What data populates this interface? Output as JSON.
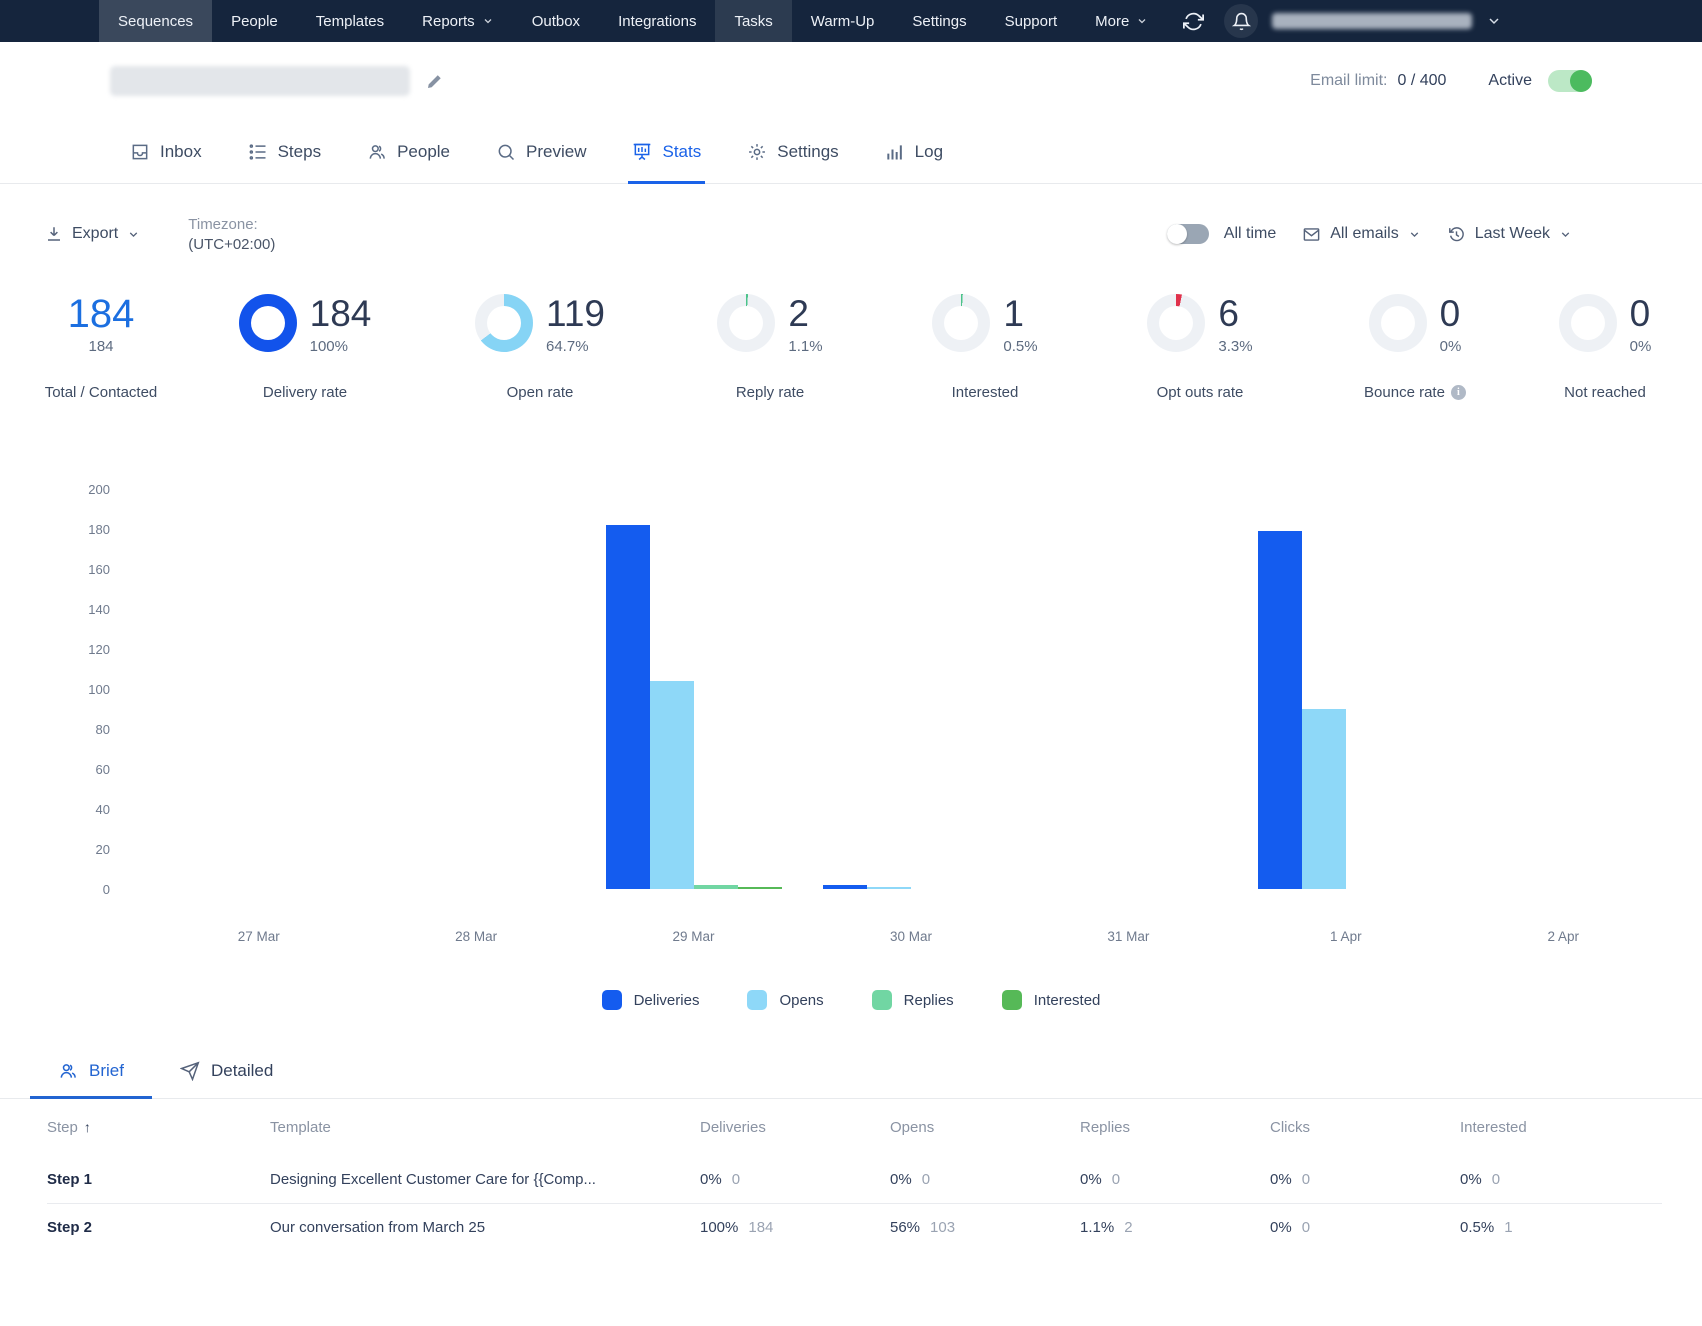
{
  "colors": {
    "accent": "#1A62E8",
    "nav_bg": "#15253D",
    "toggle_on": "#4CBB5F",
    "donut_track": "#EEF1F5"
  },
  "nav": {
    "items": [
      {
        "label": "Sequences"
      },
      {
        "label": "People"
      },
      {
        "label": "Templates"
      },
      {
        "label": "Reports"
      },
      {
        "label": "Outbox"
      },
      {
        "label": "Integrations"
      },
      {
        "label": "Tasks"
      },
      {
        "label": "Warm-Up"
      },
      {
        "label": "Settings"
      },
      {
        "label": "Support"
      },
      {
        "label": "More"
      }
    ]
  },
  "header": {
    "email_limit_label": "Email limit:",
    "email_limit_value": "0 / 400",
    "active_label": "Active",
    "active_on": true
  },
  "tabs": [
    {
      "label": "Inbox"
    },
    {
      "label": "Steps"
    },
    {
      "label": "People"
    },
    {
      "label": "Preview"
    },
    {
      "label": "Stats"
    },
    {
      "label": "Settings"
    },
    {
      "label": "Log"
    }
  ],
  "toolbar": {
    "export_label": "Export",
    "timezone_label": "Timezone:",
    "timezone_value": "(UTC+02:00)",
    "all_time_label": "All time",
    "all_time_on": false,
    "emails_filter_label": "All emails",
    "range_filter_label": "Last Week"
  },
  "stats_cards": [
    {
      "value": "184",
      "sub": "184",
      "label": "Total / Contacted",
      "type": "plain",
      "pct": null,
      "color": "#1C6FE0"
    },
    {
      "value": "184",
      "sub": "100%",
      "label": "Delivery rate",
      "type": "donut",
      "pct": 100,
      "color": "#1253EB"
    },
    {
      "value": "119",
      "sub": "64.7%",
      "label": "Open rate",
      "type": "donut",
      "pct": 64.7,
      "color": "#86D4F5"
    },
    {
      "value": "2",
      "sub": "1.1%",
      "label": "Reply rate",
      "type": "donut",
      "pct": 1.1,
      "color": "#4CC38A"
    },
    {
      "value": "1",
      "sub": "0.5%",
      "label": "Interested",
      "type": "donut",
      "pct": 0.5,
      "color": "#4CC38A"
    },
    {
      "value": "6",
      "sub": "3.3%",
      "label": "Opt outs rate",
      "type": "donut",
      "pct": 3.3,
      "color": "#E0314B"
    },
    {
      "value": "0",
      "sub": "0%",
      "label": "Bounce rate",
      "type": "donut",
      "pct": 0,
      "color": "#E0314B",
      "info": true
    },
    {
      "value": "0",
      "sub": "0%",
      "label": "Not reached",
      "type": "donut",
      "pct": 0,
      "color": "#CBD2DC"
    }
  ],
  "chart_data": {
    "type": "bar",
    "categories": [
      "27 Mar",
      "28 Mar",
      "29 Mar",
      "30 Mar",
      "31 Mar",
      "1 Apr",
      "2 Apr"
    ],
    "series": [
      {
        "name": "Deliveries",
        "color": "#145CEF",
        "values": [
          0,
          0,
          182,
          2,
          0,
          179,
          0
        ]
      },
      {
        "name": "Opens",
        "color": "#8ED8F8",
        "values": [
          0,
          0,
          104,
          1,
          0,
          90,
          0
        ]
      },
      {
        "name": "Replies",
        "color": "#71D6A3",
        "values": [
          0,
          0,
          2,
          0,
          0,
          0,
          0
        ]
      },
      {
        "name": "Interested",
        "color": "#56B957",
        "values": [
          0,
          0,
          1,
          0,
          0,
          0,
          0
        ]
      }
    ],
    "title": "",
    "xlabel": "",
    "ylabel": "",
    "ylim": [
      0,
      200
    ],
    "yticks": [
      0,
      20,
      40,
      60,
      80,
      100,
      120,
      140,
      160,
      180,
      200
    ],
    "grid": false,
    "legend_position": "bottom"
  },
  "detail_tabs": {
    "brief": "Brief",
    "detailed": "Detailed"
  },
  "table": {
    "columns": [
      "Step",
      "Template",
      "Deliveries",
      "Opens",
      "Replies",
      "Clicks",
      "Interested"
    ],
    "rows": [
      {
        "step": "Step 1",
        "template": "Designing Excellent Customer Care for {{Comp...",
        "cells": [
          [
            "0%",
            "0"
          ],
          [
            "0%",
            "0"
          ],
          [
            "0%",
            "0"
          ],
          [
            "0%",
            "0"
          ],
          [
            "0%",
            "0"
          ]
        ]
      },
      {
        "step": "Step 2",
        "template": "Our conversation from March 25",
        "cells": [
          [
            "100%",
            "184"
          ],
          [
            "56%",
            "103"
          ],
          [
            "1.1%",
            "2"
          ],
          [
            "0%",
            "0"
          ],
          [
            "0.5%",
            "1"
          ]
        ]
      }
    ]
  }
}
